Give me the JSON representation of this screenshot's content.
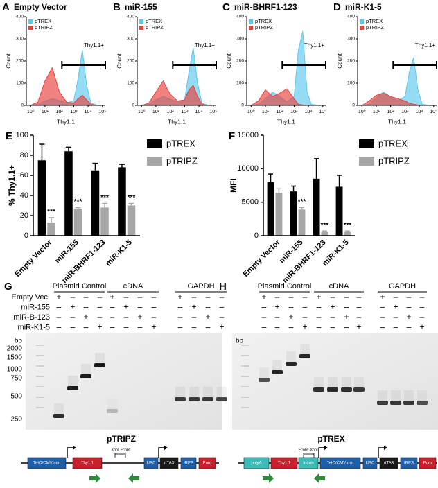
{
  "chart_data": [
    {
      "type": "area",
      "panel": "A",
      "title": "Empty Vector",
      "xlabel": "Thy1.1",
      "ylabel": "Count",
      "annotation": "Thy1.1+",
      "log_x": true,
      "x": [
        1,
        3.2,
        10,
        32,
        100,
        320,
        1000,
        2000,
        4000,
        8000,
        16000,
        40000,
        100000
      ],
      "xlim": [
        0.5,
        160000
      ],
      "xticks": [
        {
          "value": 1,
          "label": "10⁰"
        },
        {
          "value": 10,
          "label": "10¹"
        },
        {
          "value": 100,
          "label": "10²"
        },
        {
          "value": 1000,
          "label": "10³"
        },
        {
          "value": 10000,
          "label": "10⁴"
        },
        {
          "value": 100000,
          "label": "10⁵"
        }
      ],
      "ylim": [
        0,
        400
      ],
      "yticks": [
        0,
        100,
        200,
        300,
        400
      ],
      "series": [
        {
          "name": "pTREX",
          "color": "#5cc8ee",
          "values": [
            0,
            5,
            20,
            30,
            22,
            12,
            20,
            120,
            250,
            90,
            10,
            2,
            0
          ]
        },
        {
          "name": "pTRIPZ",
          "color": "#e8403a",
          "values": [
            0,
            15,
            110,
            170,
            60,
            15,
            10,
            30,
            45,
            25,
            5,
            1,
            0
          ]
        }
      ]
    },
    {
      "type": "area",
      "panel": "B",
      "title": "miR-155",
      "xlabel": "Thy1.1",
      "ylabel": "Count",
      "annotation": "Thy1.1+",
      "log_x": true,
      "x": [
        1,
        3.2,
        10,
        32,
        100,
        320,
        1000,
        2000,
        4000,
        8000,
        16000,
        40000,
        100000
      ],
      "xlim": [
        0.5,
        160000
      ],
      "xticks": [
        {
          "value": 1,
          "label": "10⁰"
        },
        {
          "value": 10,
          "label": "10¹"
        },
        {
          "value": 100,
          "label": "10²"
        },
        {
          "value": 1000,
          "label": "10³"
        },
        {
          "value": 10000,
          "label": "10⁴"
        },
        {
          "value": 100000,
          "label": "10⁵"
        }
      ],
      "ylim": [
        0,
        400
      ],
      "yticks": [
        0,
        100,
        200,
        300,
        400
      ],
      "series": [
        {
          "name": "pTREX",
          "color": "#5cc8ee",
          "values": [
            0,
            5,
            25,
            40,
            28,
            15,
            25,
            150,
            260,
            100,
            10,
            2,
            0
          ]
        },
        {
          "name": "pTRIPZ",
          "color": "#e8403a",
          "values": [
            0,
            10,
            60,
            110,
            50,
            20,
            25,
            70,
            90,
            40,
            5,
            1,
            0
          ]
        }
      ]
    },
    {
      "type": "area",
      "panel": "C",
      "title": "miR-BHRF1-123",
      "xlabel": "Thy1.1",
      "ylabel": "Count",
      "annotation": "Thy1.1+",
      "log_x": true,
      "x": [
        1,
        3.2,
        10,
        32,
        100,
        320,
        1000,
        2000,
        4000,
        8000,
        16000,
        40000,
        100000
      ],
      "xlim": [
        0.5,
        160000
      ],
      "xticks": [
        {
          "value": 1,
          "label": "10⁰"
        },
        {
          "value": 10,
          "label": "10¹"
        },
        {
          "value": 100,
          "label": "10²"
        },
        {
          "value": 1000,
          "label": "10³"
        },
        {
          "value": 10000,
          "label": "10⁴"
        },
        {
          "value": 100000,
          "label": "10⁵"
        }
      ],
      "ylim": [
        0,
        400
      ],
      "yticks": [
        0,
        100,
        200,
        300,
        400
      ],
      "series": [
        {
          "name": "pTREX",
          "color": "#5cc8ee",
          "values": [
            0,
            5,
            30,
            60,
            40,
            15,
            40,
            250,
            335,
            60,
            5,
            1,
            0
          ]
        },
        {
          "name": "pTRIPZ",
          "color": "#e8403a",
          "values": [
            0,
            20,
            70,
            40,
            55,
            75,
            30,
            5,
            2,
            0,
            0,
            0,
            0
          ]
        }
      ]
    },
    {
      "type": "area",
      "panel": "D",
      "title": "miR-K1-5",
      "xlabel": "Thy1.1",
      "ylabel": "Count",
      "annotation": "Thy1.1+",
      "log_x": true,
      "x": [
        1,
        3.2,
        10,
        32,
        100,
        320,
        1000,
        2000,
        4000,
        8000,
        16000,
        40000,
        100000
      ],
      "xlim": [
        0.5,
        160000
      ],
      "xticks": [
        {
          "value": 1,
          "label": "10⁰"
        },
        {
          "value": 10,
          "label": "10¹"
        },
        {
          "value": 100,
          "label": "10²"
        },
        {
          "value": 1000,
          "label": "10³"
        },
        {
          "value": 10000,
          "label": "10⁴"
        },
        {
          "value": 100000,
          "label": "10⁵"
        }
      ],
      "ylim": [
        0,
        400
      ],
      "yticks": [
        0,
        100,
        200,
        300,
        400
      ],
      "series": [
        {
          "name": "pTREX",
          "color": "#5cc8ee",
          "values": [
            0,
            5,
            35,
            60,
            40,
            20,
            40,
            150,
            215,
            70,
            5,
            1,
            0
          ]
        },
        {
          "name": "pTRIPZ",
          "color": "#e8403a",
          "values": [
            0,
            20,
            45,
            55,
            40,
            30,
            20,
            10,
            5,
            2,
            0,
            0,
            0
          ]
        }
      ]
    },
    {
      "type": "bar",
      "panel": "E",
      "ylabel": "% Thy1.1+",
      "categories": [
        "Empty Vector",
        "miR-155",
        "miR-BHRF1-123",
        "miR-K1-5"
      ],
      "ylim": [
        0,
        100
      ],
      "yticks": [
        0,
        20,
        40,
        60,
        80,
        100
      ],
      "series": [
        {
          "name": "pTREX",
          "color": "#000000",
          "values": [
            75,
            84,
            65,
            68
          ],
          "errors": [
            16,
            4,
            7,
            3
          ]
        },
        {
          "name": "pTRIPZ",
          "color": "#a6a6a6",
          "values": [
            13,
            27,
            28,
            30
          ],
          "errors": [
            5,
            1,
            4,
            2
          ],
          "annotations": [
            "***",
            "***",
            "***",
            "***"
          ]
        }
      ]
    },
    {
      "type": "bar",
      "panel": "F",
      "ylabel": "MFI",
      "categories": [
        "Empty Vector",
        "miR-155",
        "miR-BHRF1-123",
        "miR-K1-5"
      ],
      "ylim": [
        0,
        15000
      ],
      "yticks": [
        0,
        5000,
        10000,
        15000
      ],
      "series": [
        {
          "name": "pTREX",
          "color": "#000000",
          "values": [
            8000,
            6600,
            8500,
            7300
          ],
          "errors": [
            1200,
            800,
            3000,
            1700
          ]
        },
        {
          "name": "pTRIPZ",
          "color": "#a6a6a6",
          "values": [
            6400,
            3900,
            600,
            600
          ],
          "errors": [
            600,
            300,
            100,
            100
          ],
          "annotations": [
            null,
            "***",
            "***",
            "***"
          ]
        }
      ]
    }
  ],
  "gels": [
    {
      "panel": "G",
      "headers": [
        "Plasmid Control",
        "cDNA",
        "GAPDH"
      ],
      "row_labels": [
        "Empty Vec.",
        "miR-155",
        "miR-B-123",
        "miR-K1-5"
      ],
      "signs": [
        [
          "+",
          "–",
          "–",
          "–",
          "+",
          "–",
          "–",
          "–",
          "+",
          "–",
          "–",
          "–"
        ],
        [
          "–",
          "+",
          "–",
          "–",
          "–",
          "+",
          "–",
          "–",
          "–",
          "+",
          "–",
          "–"
        ],
        [
          "–",
          "–",
          "+",
          "–",
          "–",
          "–",
          "+",
          "–",
          "–",
          "–",
          "+",
          "–"
        ],
        [
          "–",
          "–",
          "–",
          "+",
          "–",
          "–",
          "–",
          "+",
          "–",
          "–",
          "–",
          "+"
        ]
      ],
      "ladder_unit": "bp",
      "ladder": [
        2000,
        1500,
        1000,
        750,
        500,
        250
      ],
      "map": {
        "title": "pTRIPZ",
        "parts": [
          "TetO/CMV min",
          "Thy1.1",
          "UBC",
          "rtTA3",
          "IRES",
          "Puro"
        ],
        "sites": [
          "XhoI",
          "EcoRI"
        ]
      }
    },
    {
      "panel": "H",
      "headers": [
        "Plasmid Control",
        "cDNA",
        "GAPDH"
      ],
      "signs": [
        [
          "+",
          "–",
          "–",
          "–",
          "+",
          "–",
          "–",
          "–",
          "+",
          "–",
          "–",
          "–"
        ],
        [
          "–",
          "+",
          "–",
          "–",
          "–",
          "+",
          "–",
          "–",
          "–",
          "+",
          "–",
          "–"
        ],
        [
          "–",
          "–",
          "+",
          "–",
          "–",
          "–",
          "+",
          "–",
          "–",
          "–",
          "+",
          "–"
        ],
        [
          "–",
          "–",
          "–",
          "+",
          "–",
          "–",
          "–",
          "+",
          "–",
          "–",
          "–",
          "+"
        ]
      ],
      "ladder_unit": "bp",
      "map": {
        "title": "pTREX",
        "parts": [
          "polyA",
          "Thy1.1",
          "Intron",
          "TetO/CMV min",
          "UBC",
          "rtTA3",
          "IRES",
          "Puro"
        ],
        "sites": [
          "EcoRI",
          "XhoI"
        ]
      }
    }
  ]
}
